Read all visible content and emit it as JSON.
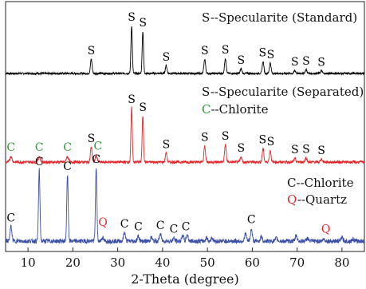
{
  "chart_data": {
    "type": "line",
    "xlabel": "2-Theta (degree)",
    "xlim": [
      5,
      85
    ],
    "xticks": [
      10,
      20,
      30,
      40,
      50,
      60,
      70,
      80
    ],
    "colors": {
      "standard": "#000000",
      "separated": "#e4262a",
      "chlorite": "#3a4fa6",
      "S": "#000000",
      "C_green": "#2a9d3a",
      "C_dark": "#000000",
      "Q": "#e4262a"
    },
    "legends": {
      "standard": {
        "text": "S--Specularite (Standard)"
      },
      "separated": {
        "text1": "S--Specularite (Separated)",
        "letter2": "C",
        "text2": "--Chlorite"
      },
      "chlorite": {
        "letter1": "C",
        "text1": "--Chlorite",
        "letter2": "Q",
        "text2": "--Quartz"
      }
    },
    "series": [
      {
        "key": "standard",
        "base": 0.1,
        "noise": 0.02,
        "peaks": [
          [
            24.1,
            0.3,
            0.18
          ],
          [
            33.1,
            1.0,
            0.15
          ],
          [
            35.6,
            0.88,
            0.15
          ],
          [
            40.8,
            0.17,
            0.18
          ],
          [
            49.4,
            0.3,
            0.18
          ],
          [
            54.0,
            0.32,
            0.18
          ],
          [
            57.5,
            0.1,
            0.18
          ],
          [
            62.4,
            0.25,
            0.18
          ],
          [
            64.0,
            0.22,
            0.18
          ],
          [
            69.5,
            0.06,
            0.2
          ],
          [
            72.0,
            0.08,
            0.2
          ],
          [
            75.4,
            0.06,
            0.2
          ]
        ],
        "labels": [
          {
            "text": "S",
            "x": 24.1,
            "h": 0.3,
            "group": "S"
          },
          {
            "text": "S",
            "x": 33.1,
            "h": 1.0,
            "group": "S"
          },
          {
            "text": "S",
            "x": 35.6,
            "h": 0.88,
            "group": "S"
          },
          {
            "text": "S",
            "x": 40.8,
            "h": 0.17,
            "group": "S"
          },
          {
            "text": "S",
            "x": 49.4,
            "h": 0.3,
            "group": "S"
          },
          {
            "text": "S",
            "x": 54.0,
            "h": 0.32,
            "group": "S"
          },
          {
            "text": "S",
            "x": 57.5,
            "h": 0.1,
            "group": "S"
          },
          {
            "text": "S",
            "x": 62.3,
            "h": 0.26,
            "group": "S"
          },
          {
            "text": "S",
            "x": 64.1,
            "h": 0.22,
            "group": "S"
          },
          {
            "text": "S",
            "x": 69.5,
            "h": 0.07,
            "group": "S"
          },
          {
            "text": "S",
            "x": 72.0,
            "h": 0.08,
            "group": "S"
          },
          {
            "text": "S",
            "x": 75.4,
            "h": 0.06,
            "group": "S"
          }
        ]
      },
      {
        "key": "separated",
        "base": 0.1,
        "noise": 0.025,
        "peaks": [
          [
            6.2,
            0.1,
            0.25
          ],
          [
            12.5,
            0.1,
            0.25
          ],
          [
            18.8,
            0.1,
            0.25
          ],
          [
            24.1,
            0.28,
            0.18
          ],
          [
            25.2,
            0.12,
            0.2
          ],
          [
            33.1,
            1.0,
            0.15
          ],
          [
            35.6,
            0.85,
            0.15
          ],
          [
            40.8,
            0.17,
            0.18
          ],
          [
            49.4,
            0.3,
            0.18
          ],
          [
            54.0,
            0.32,
            0.18
          ],
          [
            57.5,
            0.1,
            0.18
          ],
          [
            62.4,
            0.25,
            0.18
          ],
          [
            64.0,
            0.22,
            0.18
          ],
          [
            69.5,
            0.06,
            0.2
          ],
          [
            72.0,
            0.08,
            0.2
          ],
          [
            75.4,
            0.06,
            0.2
          ]
        ],
        "labels": [
          {
            "text": "C",
            "x": 6.2,
            "h": 0.12,
            "group": "C_green"
          },
          {
            "text": "C",
            "x": 12.5,
            "h": 0.12,
            "group": "C_green"
          },
          {
            "text": "C",
            "x": 18.8,
            "h": 0.12,
            "group": "C_green"
          },
          {
            "text": "S",
            "x": 24.1,
            "h": 0.28,
            "group": "S"
          },
          {
            "text": "C",
            "x": 25.6,
            "h": 0.14,
            "group": "C_green"
          },
          {
            "text": "S",
            "x": 33.1,
            "h": 1.0,
            "group": "S"
          },
          {
            "text": "S",
            "x": 35.6,
            "h": 0.85,
            "group": "S"
          },
          {
            "text": "S",
            "x": 40.8,
            "h": 0.17,
            "group": "S"
          },
          {
            "text": "S",
            "x": 49.4,
            "h": 0.3,
            "group": "S"
          },
          {
            "text": "S",
            "x": 54.0,
            "h": 0.32,
            "group": "S"
          },
          {
            "text": "S",
            "x": 57.5,
            "h": 0.1,
            "group": "S"
          },
          {
            "text": "S",
            "x": 62.3,
            "h": 0.26,
            "group": "S"
          },
          {
            "text": "S",
            "x": 64.1,
            "h": 0.22,
            "group": "S"
          },
          {
            "text": "S",
            "x": 69.5,
            "h": 0.07,
            "group": "S"
          },
          {
            "text": "S",
            "x": 72.0,
            "h": 0.08,
            "group": "S"
          },
          {
            "text": "S",
            "x": 75.4,
            "h": 0.06,
            "group": "S"
          }
        ]
      },
      {
        "key": "chlorite",
        "base": 0.1,
        "noise": 0.03,
        "peaks": [
          [
            6.2,
            0.2,
            0.2
          ],
          [
            12.5,
            0.97,
            0.16
          ],
          [
            18.8,
            0.9,
            0.16
          ],
          [
            25.2,
            1.0,
            0.16
          ],
          [
            26.6,
            0.05,
            0.2
          ],
          [
            31.5,
            0.12,
            0.2
          ],
          [
            34.6,
            0.07,
            0.2
          ],
          [
            37.5,
            0.05,
            0.2
          ],
          [
            39.5,
            0.1,
            0.2
          ],
          [
            42.5,
            0.04,
            0.2
          ],
          [
            44.5,
            0.08,
            0.2
          ],
          [
            45.5,
            0.09,
            0.2
          ],
          [
            49.8,
            0.05,
            0.2
          ],
          [
            51.0,
            0.05,
            0.2
          ],
          [
            58.5,
            0.1,
            0.2
          ],
          [
            59.8,
            0.16,
            0.2
          ],
          [
            62.0,
            0.06,
            0.2
          ],
          [
            65.4,
            0.04,
            0.2
          ],
          [
            69.8,
            0.08,
            0.2
          ],
          [
            72.3,
            0.04,
            0.2
          ],
          [
            76.0,
            0.03,
            0.2
          ],
          [
            80.0,
            0.05,
            0.2
          ],
          [
            82.5,
            0.03,
            0.2
          ]
        ],
        "labels": [
          {
            "text": "C",
            "x": 6.2,
            "h": 0.2,
            "group": "C_dark"
          },
          {
            "text": "C",
            "x": 12.5,
            "h": 0.97,
            "group": "C_dark"
          },
          {
            "text": "C",
            "x": 18.8,
            "h": 0.9,
            "group": "C_dark"
          },
          {
            "text": "C",
            "x": 25.2,
            "h": 1.0,
            "group": "C_dark"
          },
          {
            "text": "Q",
            "x": 26.7,
            "h": 0.14,
            "group": "Q"
          },
          {
            "text": "C",
            "x": 31.5,
            "h": 0.12,
            "group": "C_dark"
          },
          {
            "text": "C",
            "x": 34.6,
            "h": 0.08,
            "group": "C_dark"
          },
          {
            "text": "C",
            "x": 39.5,
            "h": 0.1,
            "group": "C_dark"
          },
          {
            "text": "C",
            "x": 42.5,
            "h": 0.05,
            "group": "C_dark"
          },
          {
            "text": "C",
            "x": 45.2,
            "h": 0.08,
            "group": "C_dark"
          },
          {
            "text": "C",
            "x": 59.8,
            "h": 0.18,
            "group": "C_dark"
          },
          {
            "text": "Q",
            "x": 76.4,
            "h": 0.05,
            "group": "Q"
          }
        ]
      }
    ]
  }
}
